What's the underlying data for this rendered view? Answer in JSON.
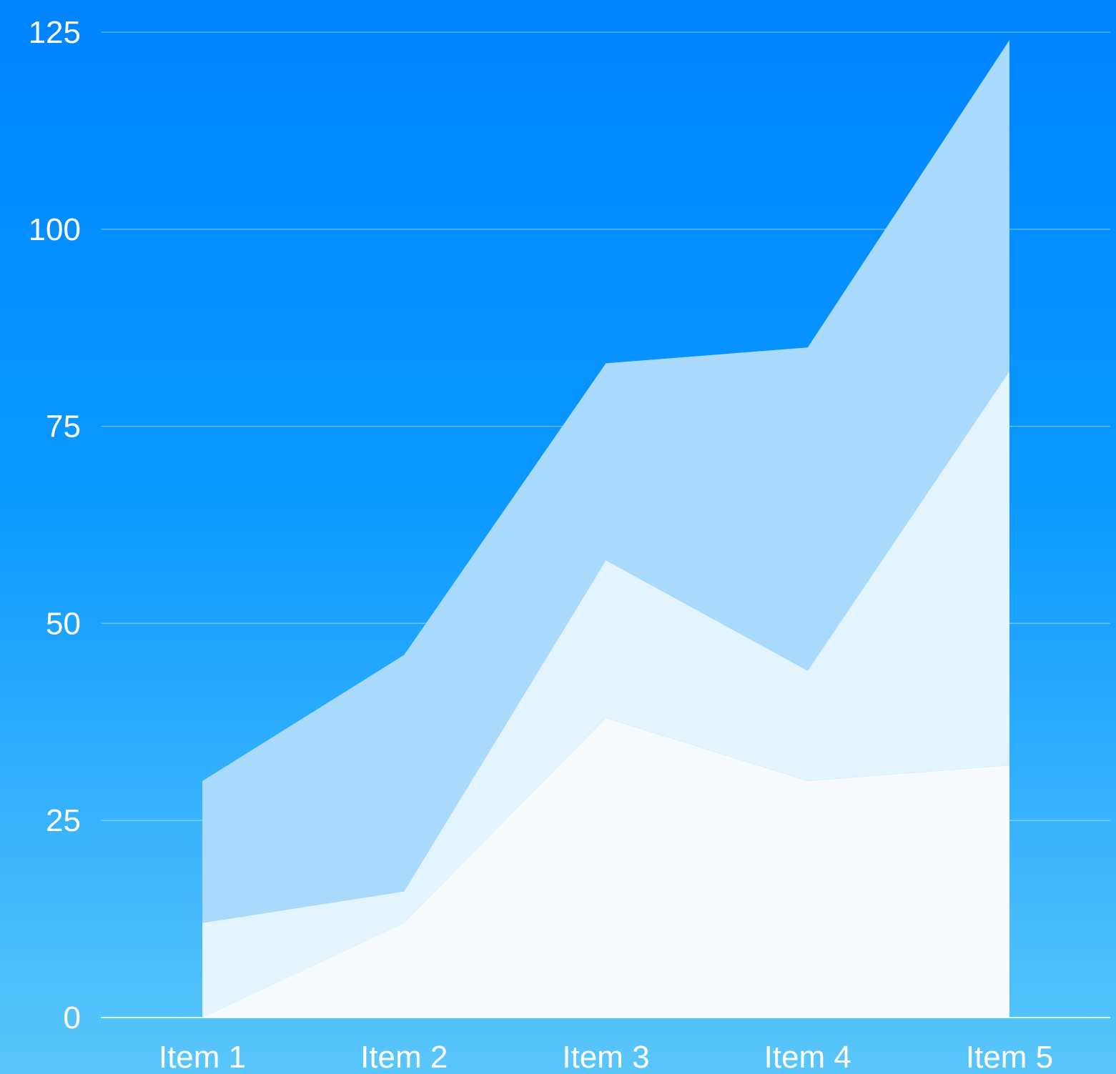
{
  "chart_data": {
    "type": "area",
    "stacked": true,
    "categories": [
      "Item 1",
      "Item 2",
      "Item 3",
      "Item 4",
      "Item 5"
    ],
    "y_ticks": [
      0,
      25,
      50,
      75,
      100,
      125
    ],
    "ylim": [
      0,
      125
    ],
    "grid": true,
    "series": [
      {
        "values": [
          0,
          12,
          38,
          30,
          32
        ],
        "color": "#f7fbff"
      },
      {
        "values": [
          12,
          4,
          20,
          14,
          50
        ],
        "color": "#e4f4fd"
      },
      {
        "values": [
          18,
          30,
          25,
          41,
          42
        ],
        "color": "#a9d9fb"
      }
    ]
  }
}
